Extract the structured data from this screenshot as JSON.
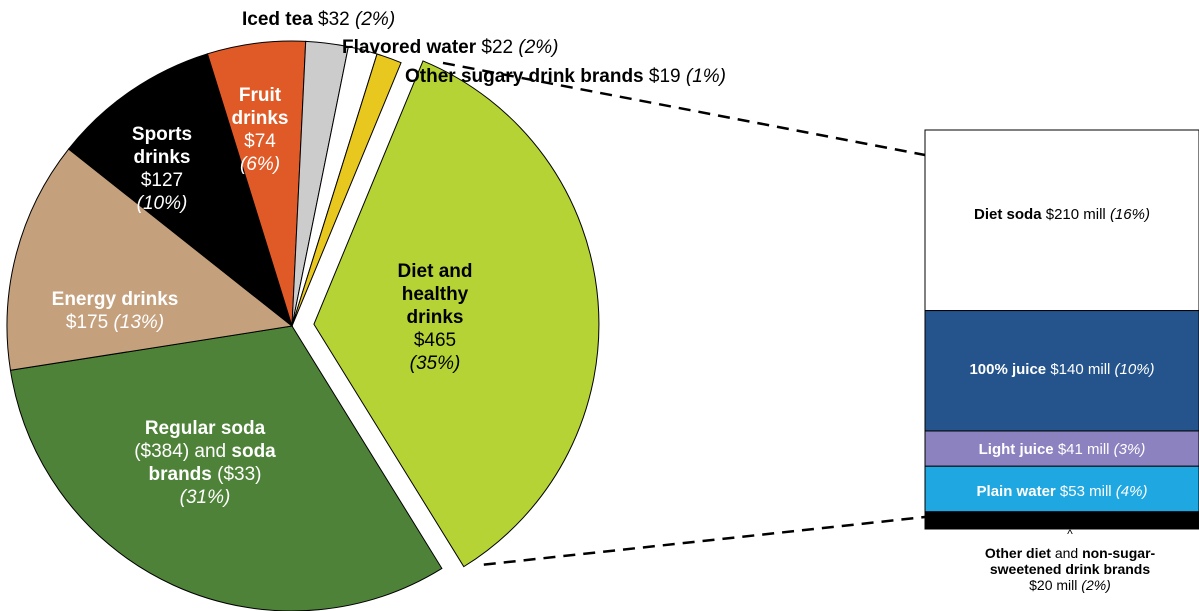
{
  "chart_data": [
    {
      "type": "pie",
      "unit_prefix": "$",
      "slices": [
        {
          "id": "diet",
          "bold": "Diet and healthy drinks",
          "value": 465,
          "value_text": "$465",
          "pct": 35,
          "pct_text": "(35%)",
          "color": "#b5d334",
          "exploded": true
        },
        {
          "id": "soda",
          "bold": "Regular soda",
          "value": 417,
          "rest1": "($384) and",
          "bold2": "soda brands",
          "rest2": "($33)",
          "pct": 31,
          "pct_text": "(31%)",
          "color": "#4e8238"
        },
        {
          "id": "energy",
          "bold": "Energy drinks",
          "value": 175,
          "value_text": "$175",
          "pct": 13,
          "pct_text": "(13%)",
          "color": "#c4a07d"
        },
        {
          "id": "sports",
          "bold": "Sports drinks",
          "value": 127,
          "value_text": "$127",
          "pct": 10,
          "pct_text": "(10%)",
          "color": "#000000"
        },
        {
          "id": "fruit",
          "bold": "Fruit drinks",
          "value": 74,
          "value_text": "$74",
          "pct": 6,
          "pct_text": "(6%)",
          "color": "#e05a27"
        },
        {
          "id": "tea",
          "bold": "Iced tea",
          "value": 32,
          "value_text": "$32",
          "pct": 2,
          "pct_text": "(2%)",
          "color": "#cccccc"
        },
        {
          "id": "water",
          "bold": "Flavored water",
          "value": 22,
          "value_text": "$22",
          "pct": 2,
          "pct_text": "(2%)",
          "color": "#ffffff"
        },
        {
          "id": "other",
          "bold": "Other sugary drink brands",
          "value": 19,
          "value_text": "$19",
          "pct": 1,
          "pct_text": "(1%)",
          "color": "#e8c81e"
        }
      ]
    },
    {
      "type": "bar",
      "stacked": true,
      "segments": [
        {
          "id": "dietsoda",
          "bold": "Diet soda",
          "value": 210,
          "value_text": "$210 mill",
          "pct_text": "(16%)",
          "color": "#ffffff"
        },
        {
          "id": "juice",
          "bold": "100% juice",
          "value": 140,
          "value_text": "$140 mill",
          "pct_text": "(10%)",
          "color": "#24548b"
        },
        {
          "id": "light",
          "bold": "Light juice",
          "value": 41,
          "value_text": "$41 mill",
          "pct_text": "(3%)",
          "color": "#8c82c0"
        },
        {
          "id": "plain",
          "bold": "Plain water",
          "value": 53,
          "value_text": "$53 mill",
          "pct_text": "(4%)",
          "color": "#1ea7e0"
        },
        {
          "id": "otherdiet",
          "bold": "Other diet",
          "value": 20,
          "mid": "and",
          "bold2": "non-sugar-sweetened drink brands",
          "value_text": "$20 mill",
          "pct_text": "(2%)",
          "color": "#000000"
        }
      ],
      "caret": "^"
    }
  ]
}
